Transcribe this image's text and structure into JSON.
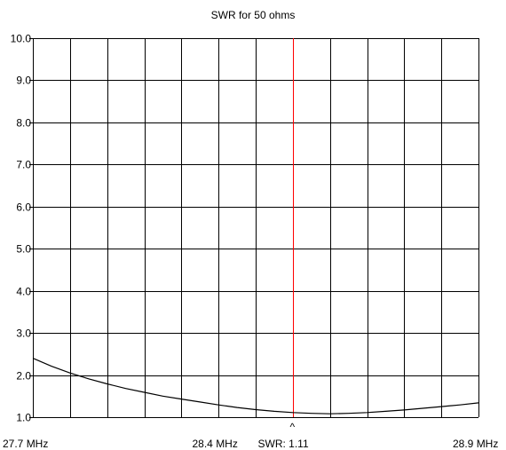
{
  "chart_data": {
    "type": "line",
    "title": "SWR for 50 ohms",
    "xlabel": "",
    "ylabel": "",
    "x_range": [
      27.7,
      28.9
    ],
    "ylim": [
      1.0,
      10.0
    ],
    "y_ticks": [
      "1.0",
      "2.0",
      "3.0",
      "4.0",
      "5.0",
      "6.0",
      "7.0",
      "8.0",
      "9.0",
      "10.0"
    ],
    "x_tick_labels": {
      "left": "27.7 MHz",
      "center": "28.4 MHz",
      "right": "28.9 MHz"
    },
    "grid": true,
    "marker": {
      "frequency": 28.4,
      "caret": "^",
      "readout": "SWR:  1.11",
      "color": "#ff0000"
    },
    "series": [
      {
        "color": "#000000",
        "x": [
          27.7,
          27.75,
          27.8,
          27.85,
          27.9,
          27.95,
          28.0,
          28.05,
          28.1,
          28.15,
          28.2,
          28.25,
          28.3,
          28.35,
          28.4,
          28.45,
          28.5,
          28.55,
          28.6,
          28.65,
          28.7,
          28.75,
          28.8,
          28.85,
          28.9
        ],
        "y": [
          2.4,
          2.21,
          2.05,
          1.91,
          1.79,
          1.68,
          1.59,
          1.5,
          1.43,
          1.36,
          1.29,
          1.23,
          1.18,
          1.14,
          1.11,
          1.09,
          1.08,
          1.09,
          1.11,
          1.14,
          1.17,
          1.21,
          1.25,
          1.29,
          1.34
        ]
      }
    ]
  }
}
